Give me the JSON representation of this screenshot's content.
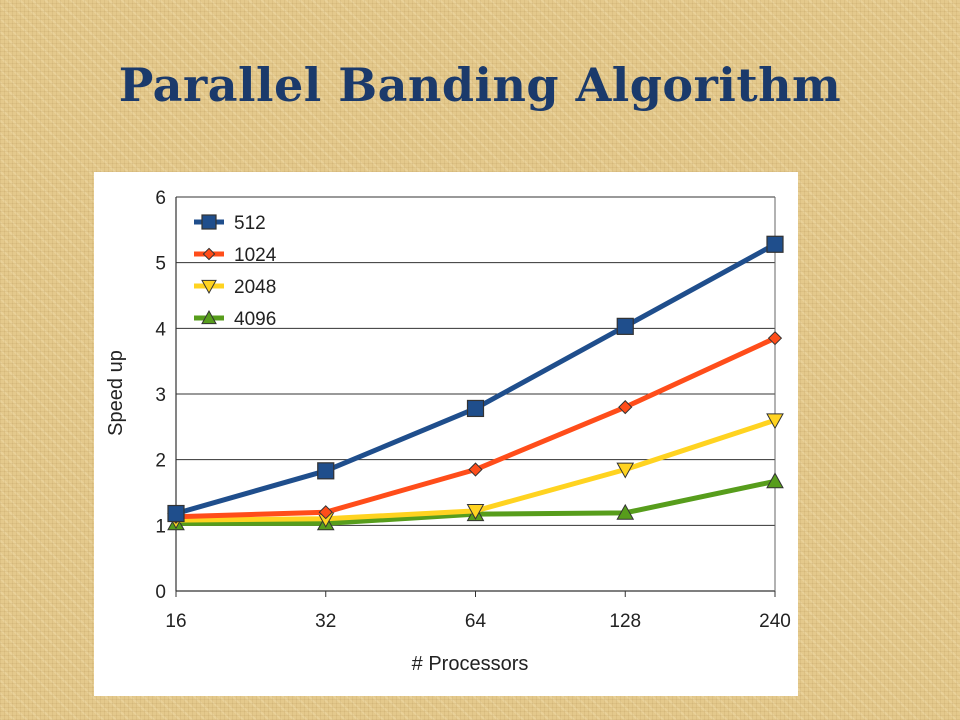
{
  "slide": {
    "title": "Parallel Banding Algorithm"
  },
  "chart_data": {
    "type": "line",
    "title": "",
    "xlabel": "# Processors",
    "ylabel": "Speed up",
    "categories": [
      "16",
      "32",
      "64",
      "128",
      "240"
    ],
    "ylim": [
      0,
      6
    ],
    "yticks": [
      "0",
      "1",
      "2",
      "3",
      "4",
      "5",
      "6"
    ],
    "grid": "horizontal",
    "legend_position": "top-left",
    "series": [
      {
        "name": "512",
        "color": "#1f4e8c",
        "marker": "square",
        "values": [
          1.18,
          1.83,
          2.78,
          4.03,
          5.28
        ]
      },
      {
        "name": "1024",
        "color": "#ff4d1a",
        "marker": "diamond",
        "values": [
          1.13,
          1.2,
          1.85,
          2.8,
          3.85
        ]
      },
      {
        "name": "2048",
        "color": "#ffd320",
        "marker": "triangle-down",
        "values": [
          1.08,
          1.1,
          1.22,
          1.85,
          2.6
        ]
      },
      {
        "name": "4096",
        "color": "#579d1c",
        "marker": "triangle-up",
        "values": [
          1.03,
          1.03,
          1.17,
          1.19,
          1.67
        ]
      }
    ]
  }
}
